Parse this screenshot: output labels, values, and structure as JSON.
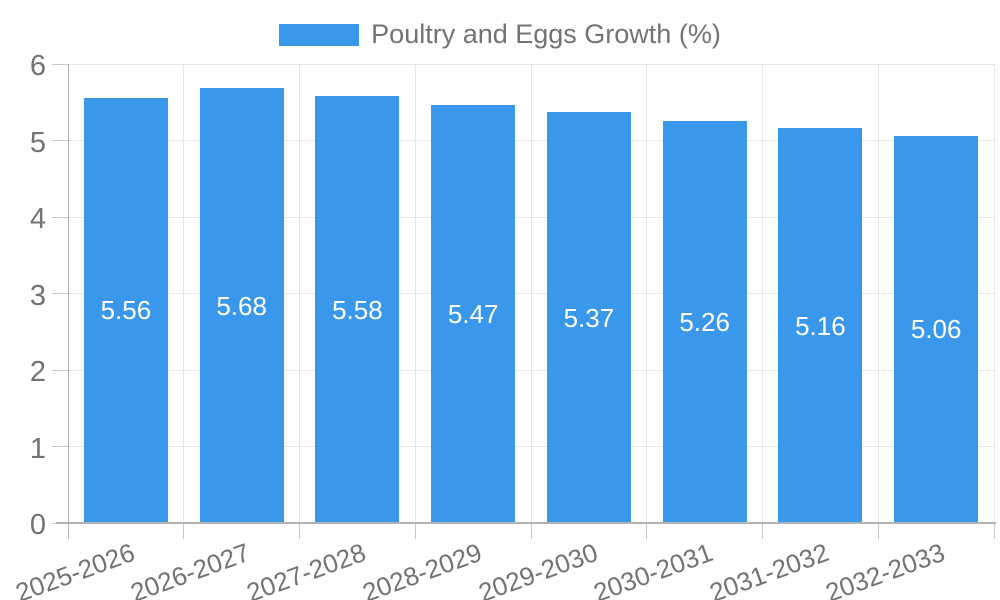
{
  "legend": {
    "position": "top",
    "label": "Poultry and Eggs Growth (%)"
  },
  "colors": {
    "bar": "#3998EB",
    "grid": "#e6e6e6",
    "axis": "#b3b3b3",
    "tick": "#c9c9c9",
    "tick_label": "#737373",
    "legend_text": "#737373",
    "value_label": "#ffffff",
    "background": "#ffffff"
  },
  "chart_data": {
    "type": "bar",
    "title": "Poultry and Eggs Growth (%)",
    "categories": [
      "2025-2026",
      "2026-2027",
      "2027-2028",
      "2028-2029",
      "2029-2030",
      "2030-2031",
      "2031-2032",
      "2032-2033"
    ],
    "values": [
      5.56,
      5.68,
      5.58,
      5.47,
      5.37,
      5.26,
      5.16,
      5.06
    ],
    "value_labels": [
      "5.56",
      "5.68",
      "5.58",
      "5.47",
      "5.37",
      "5.26",
      "5.16",
      "5.06"
    ],
    "xlabel": "",
    "ylabel": "",
    "ylim": [
      0,
      6
    ],
    "yticks": [
      0,
      1,
      2,
      3,
      4,
      5,
      6
    ],
    "grid": true,
    "legend_position": "top",
    "value_label_position": "inside-center",
    "x_label_rotation_deg": -20
  }
}
